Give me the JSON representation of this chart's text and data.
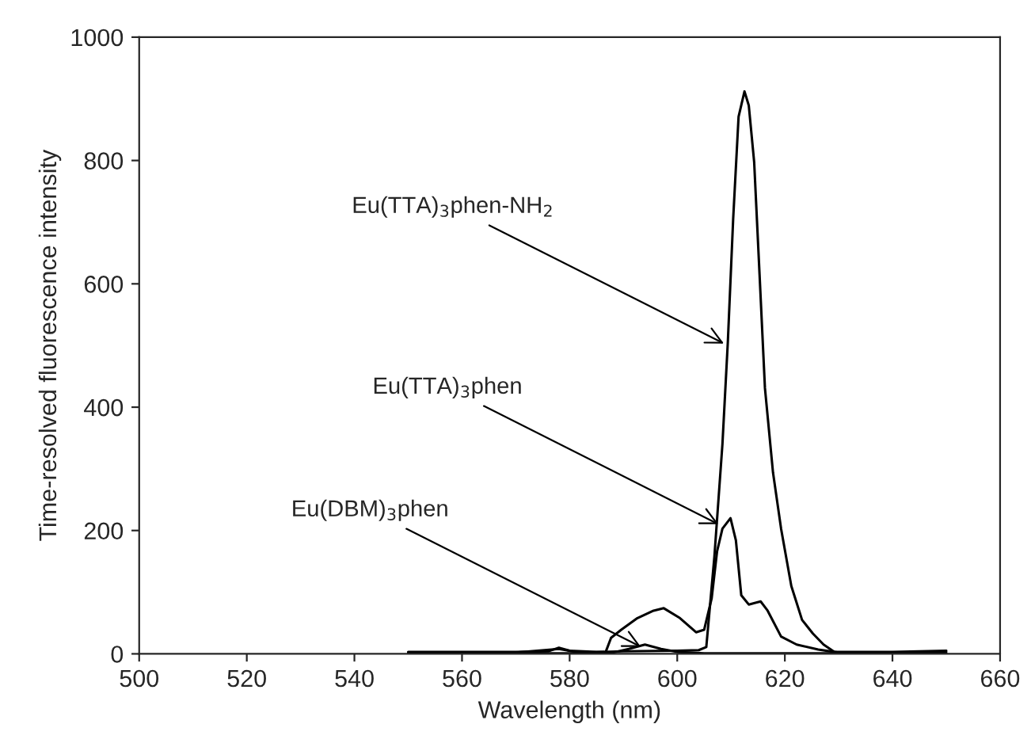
{
  "chart_data": {
    "type": "line",
    "xlabel": "Wavelength (nm)",
    "ylabel": "Time-resolved fluorescence intensity",
    "xlim": [
      500,
      660
    ],
    "xticks": [
      500,
      520,
      540,
      560,
      580,
      600,
      620,
      640,
      660
    ],
    "ylim": [
      0,
      1000
    ],
    "yticks": [
      0,
      200,
      400,
      600,
      800,
      1000
    ],
    "grid": false,
    "legend": false,
    "series": [
      {
        "color": "#000000",
        "x": [
          550,
          570,
          576,
          578,
          580,
          585,
          590,
          600,
          604,
          605.4,
          606.9,
          608.4,
          609.4,
          610.4,
          611.4,
          612.5,
          613.3,
          614.3,
          615.3,
          616.3,
          617.8,
          619.3,
          621.2,
          623.2,
          625.2,
          627.2,
          629.2,
          635,
          640,
          650
        ],
        "values": [
          3,
          3,
          4,
          10,
          5,
          3,
          4,
          5,
          6,
          11,
          157,
          340,
          505,
          706,
          871,
          912,
          889,
          797,
          615,
          431,
          294,
          203,
          110,
          55,
          33,
          15,
          3,
          3,
          3,
          5
        ]
      },
      {
        "color": "#000000",
        "x": [
          550,
          570,
          578,
          582,
          586.7,
          587.7,
          589.6,
          592.6,
          595.6,
          597.5,
          600.5,
          603.5,
          605,
          606.4,
          607.4,
          608.4,
          609.9,
          610.9,
          611.9,
          613.3,
          615.5,
          616.8,
          619.3,
          622.2,
          626.2,
          630,
          640,
          650
        ],
        "values": [
          2,
          2,
          8,
          2,
          3,
          26,
          39,
          58,
          70,
          74,
          58,
          35,
          39,
          90,
          166,
          203,
          220,
          184,
          95,
          80,
          85,
          70,
          28,
          15,
          7,
          2,
          2,
          3
        ]
      },
      {
        "color": "#000000",
        "x": [
          550,
          580,
          588,
          591,
          594,
          597,
          600,
          605,
          620,
          650
        ],
        "values": [
          1,
          1,
          2,
          8,
          15,
          8,
          3,
          1,
          1,
          1
        ]
      }
    ],
    "annotations": [
      {
        "text": "Eu(TTA)$_{3}$phen-NH$_{2}$",
        "x": 609.4,
        "y": 500
      },
      {
        "text": "Eu(TTA)$_{3}$phen",
        "x": 608.4,
        "y": 207
      },
      {
        "text": "Eu(DBM)$_{3}$phen",
        "x": 594,
        "y": 8
      }
    ]
  }
}
